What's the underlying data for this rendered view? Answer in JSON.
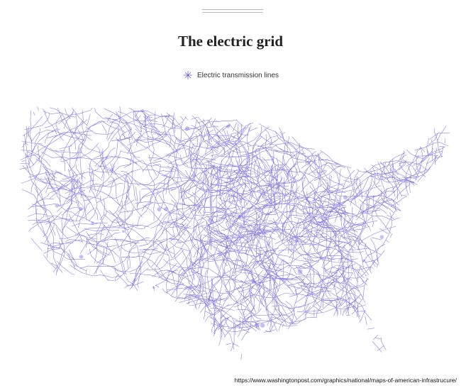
{
  "title": "The electric grid",
  "legend": {
    "label": "Electric transmission lines"
  },
  "source": "https://www.washingtonpost.com/graphics/national/maps-of-american-infrastrucure/"
}
